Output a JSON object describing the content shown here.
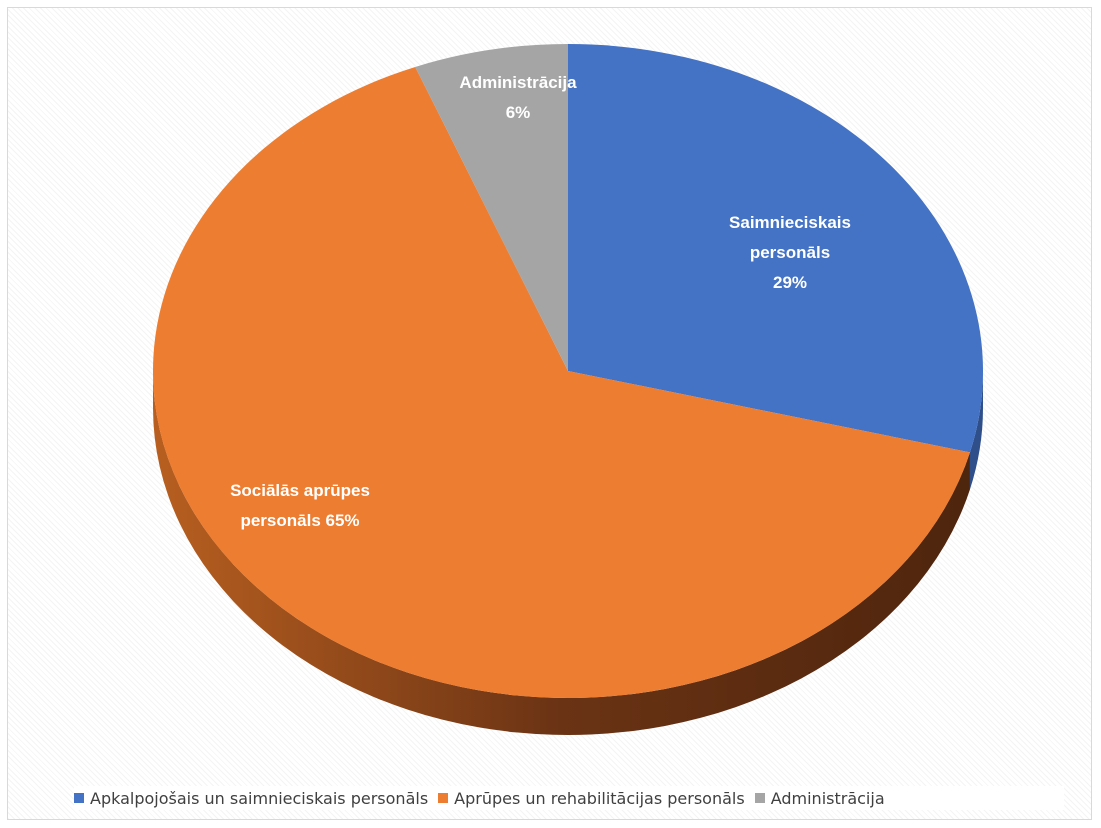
{
  "chart_data": {
    "type": "pie",
    "title": "",
    "style": "3d",
    "legend_position": "bottom",
    "slices": [
      {
        "legend": "Apkalpojošais un saimnieciskais personāls",
        "label_lines": [
          "Saimnieciskais",
          "personāls",
          "29%"
        ],
        "value": 29,
        "color": "#4472c4",
        "dark_color": "#2f4f8a"
      },
      {
        "legend": "Aprūpes un rehabilitācijas personāls",
        "label_lines": [
          "Sociālās aprūpes",
          "personāls 65%"
        ],
        "value": 65,
        "color": "#ed7d31",
        "dark_color": "#7a3a12"
      },
      {
        "legend": "Administrācija",
        "label_lines": [
          "Administrācija",
          "6%"
        ],
        "value": 6,
        "color": "#a5a5a5",
        "dark_color": "#6e6e6e"
      }
    ]
  }
}
